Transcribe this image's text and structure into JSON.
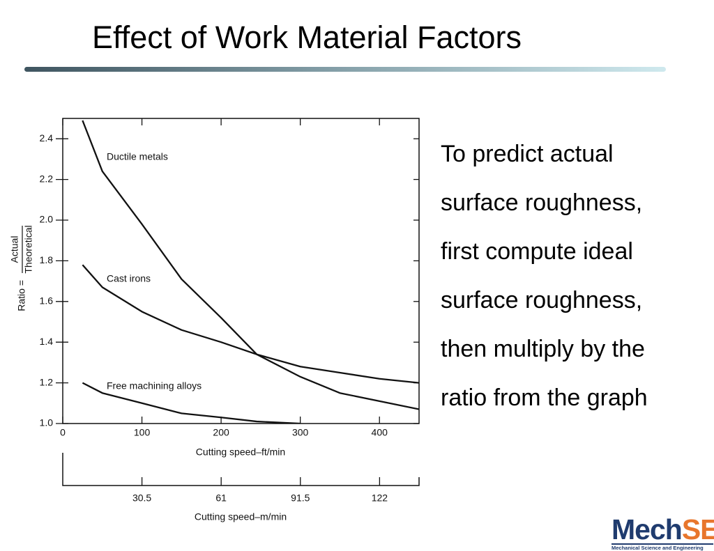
{
  "title": "Effect of Work Material Factors",
  "body": [
    "To predict actual",
    "surface roughness,",
    "first compute ideal",
    "surface roughness,",
    "then multiply by the",
    "ratio from the graph"
  ],
  "logo": {
    "text": "Mech",
    "accent": "SE",
    "subtitle": "Mechanical Science and Engineering"
  },
  "chart_data": {
    "type": "line",
    "x_label": "Cutting speed–ft/min",
    "x2_label": "Cutting speed–m/min",
    "y_label": "Ratio =",
    "y_label_numerator": "Actual",
    "y_label_denominator": "Theoretical",
    "x": [
      25,
      50,
      100,
      150,
      200,
      245,
      300,
      350,
      400,
      450
    ],
    "series": [
      {
        "name": "Ductile metals",
        "color": "#111111",
        "values": [
          2.49,
          2.24,
          1.98,
          1.71,
          1.52,
          1.34,
          1.23,
          1.15,
          1.11,
          1.07
        ]
      },
      {
        "name": "Cast irons",
        "color": "#111111",
        "values": [
          1.78,
          1.67,
          1.55,
          1.46,
          1.4,
          1.34,
          1.28,
          1.25,
          1.22,
          1.2
        ]
      },
      {
        "name": "Free machining alloys",
        "color": "#111111",
        "values": [
          1.2,
          1.15,
          1.1,
          1.05,
          1.03,
          1.01,
          1.0,
          null,
          null,
          null
        ]
      }
    ],
    "xlim": [
      0,
      450
    ],
    "xticks": [
      0,
      100,
      200,
      300,
      400
    ],
    "x2lim": [
      0,
      137.2
    ],
    "x2ticks": [
      30.5,
      61,
      91.5,
      122
    ],
    "ylim": [
      1.0,
      2.5
    ],
    "yticks": [
      {
        "value": 1.0,
        "label": "1.0"
      },
      1.2,
      1.4,
      1.6,
      1.8,
      {
        "value": 2.0,
        "label": "2.0"
      },
      2.2,
      2.4
    ],
    "grid": false
  }
}
